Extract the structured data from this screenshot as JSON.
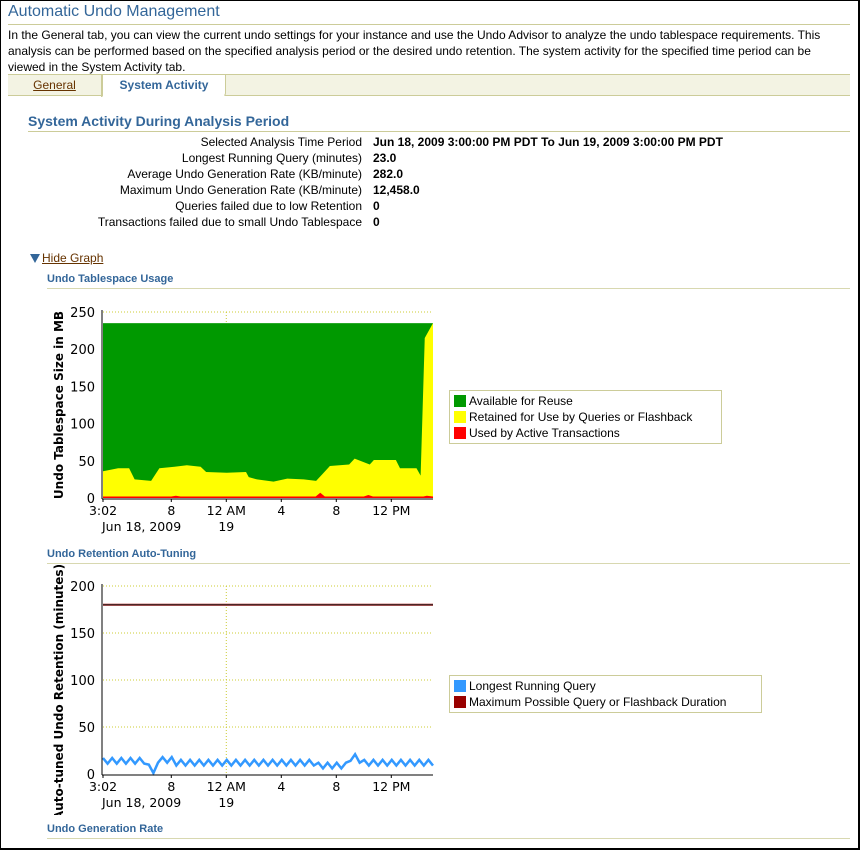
{
  "header": {
    "title": "Automatic Undo Management",
    "intro": "In the General tab, you can view the current undo settings for your instance and use the Undo Advisor to analyze the undo tablespace requirements. This analysis can be performed based on the specified analysis period or the desired undo retention. The system activity for the specified time period can be viewed in the System Activity tab."
  },
  "tabs": [
    {
      "label": "General",
      "active": false
    },
    {
      "label": "System Activity",
      "active": true
    }
  ],
  "section": {
    "title": "System Activity During Analysis Period",
    "rows": [
      {
        "label": "Selected Analysis Time Period",
        "value": "Jun 18, 2009 3:00:00 PM PDT To Jun 19, 2009 3:00:00 PM PDT"
      },
      {
        "label": "Longest Running Query (minutes)",
        "value": "23.0"
      },
      {
        "label": "Average Undo Generation Rate (KB/minute)",
        "value": "282.0"
      },
      {
        "label": "Maximum Undo Generation Rate (KB/minute)",
        "value": "12,458.0"
      },
      {
        "label": "Queries failed due to low Retention",
        "value": "0"
      },
      {
        "label": "Transactions failed due to small Undo Tablespace",
        "value": "0"
      }
    ]
  },
  "graph_toggle": {
    "label": "Hide Graph",
    "icon": "triangle-down-icon"
  },
  "subsections": {
    "usage": "Undo Tablespace Usage",
    "retention": "Undo Retention Auto-Tuning",
    "generation": "Undo Generation Rate"
  },
  "chart_data": [
    {
      "type": "area",
      "stacked": true,
      "title": "Undo Tablespace Usage",
      "ylabel": "Undo Tablespace Size in MB",
      "ylim": [
        0,
        250
      ],
      "yticks": [
        0,
        50,
        100,
        150,
        200,
        250
      ],
      "xlim": [
        "2009-06-18 15:02",
        "2009-06-19 15:02"
      ],
      "xticks": [
        {
          "label": "3:02",
          "sub": "Jun 18, 2009",
          "t": "2009-06-18 15:02"
        },
        {
          "label": "8",
          "t": "2009-06-18 20:00"
        },
        {
          "label": "12 AM",
          "sub": "19",
          "t": "2009-06-19 00:00"
        },
        {
          "label": "4",
          "t": "2009-06-19 04:00"
        },
        {
          "label": "8",
          "t": "2009-06-19 08:00"
        },
        {
          "label": "12 PM",
          "t": "2009-06-19 12:00"
        }
      ],
      "grid": {
        "horizontal": "dotted",
        "vertical_at": "12 AM"
      },
      "legend_position": "right",
      "series": [
        {
          "name": "Available for Reuse",
          "color": "#009900",
          "total_size": 235
        },
        {
          "name": "Retained for Use by Queries or Flashback",
          "color": "#ffff00",
          "points": [
            [
              "2009-06-18 15:02",
              36
            ],
            [
              "2009-06-18 16:08",
              40
            ],
            [
              "2009-06-18 16:56",
              40
            ],
            [
              "2009-06-18 17:20",
              25
            ],
            [
              "2009-06-18 18:32",
              23
            ],
            [
              "2009-06-18 19:08",
              40
            ],
            [
              "2009-06-18 20:14",
              42
            ],
            [
              "2009-06-18 21:08",
              44
            ],
            [
              "2009-06-18 22:08",
              42
            ],
            [
              "2009-06-18 22:32",
              35
            ],
            [
              "2009-06-19 00:02",
              34
            ],
            [
              "2009-06-19 01:26",
              35
            ],
            [
              "2009-06-19 01:38",
              28
            ],
            [
              "2009-06-19 02:14",
              25
            ],
            [
              "2009-06-19 03:26",
              22
            ],
            [
              "2009-06-19 04:26",
              26
            ],
            [
              "2009-06-19 05:38",
              25
            ],
            [
              "2009-06-19 06:32",
              23
            ],
            [
              "2009-06-19 07:02",
              33
            ],
            [
              "2009-06-19 07:32",
              43
            ],
            [
              "2009-06-19 08:56",
              45
            ],
            [
              "2009-06-19 09:20",
              53
            ],
            [
              "2009-06-19 10:26",
              45
            ],
            [
              "2009-06-19 10:44",
              51
            ],
            [
              "2009-06-19 12:20",
              51
            ],
            [
              "2009-06-19 12:38",
              40
            ],
            [
              "2009-06-19 13:50",
              40
            ],
            [
              "2009-06-19 14:08",
              30
            ],
            [
              "2009-06-19 14:26",
              215
            ],
            [
              "2009-06-19 15:02",
              235
            ]
          ]
        },
        {
          "name": "Used by Active Transactions",
          "color": "#ff0000",
          "points": [
            [
              "2009-06-18 15:02",
              2
            ],
            [
              "2009-06-18 20:00",
              2
            ],
            [
              "2009-06-18 20:20",
              3
            ],
            [
              "2009-06-18 20:40",
              2
            ],
            [
              "2009-06-19 06:30",
              2
            ],
            [
              "2009-06-19 06:50",
              7
            ],
            [
              "2009-06-19 07:10",
              2
            ],
            [
              "2009-06-19 10:00",
              2
            ],
            [
              "2009-06-19 10:20",
              4
            ],
            [
              "2009-06-19 10:40",
              2
            ],
            [
              "2009-06-19 14:20",
              2
            ],
            [
              "2009-06-19 14:35",
              3
            ],
            [
              "2009-06-19 15:02",
              2
            ]
          ]
        }
      ]
    },
    {
      "type": "line",
      "title": "Undo Retention Auto-Tuning",
      "ylabel": "Auto-tuned Undo Retention (minutes)",
      "ylim": [
        0,
        200
      ],
      "yticks": [
        0,
        50,
        100,
        150,
        200
      ],
      "xlim": [
        "2009-06-18 15:02",
        "2009-06-19 15:02"
      ],
      "xticks": [
        {
          "label": "3:02",
          "sub": "Jun 18, 2009",
          "t": "2009-06-18 15:02"
        },
        {
          "label": "8",
          "t": "2009-06-18 20:00"
        },
        {
          "label": "12 AM",
          "sub": "19",
          "t": "2009-06-19 00:00"
        },
        {
          "label": "4",
          "t": "2009-06-19 04:00"
        },
        {
          "label": "8",
          "t": "2009-06-19 08:00"
        },
        {
          "label": "12 PM",
          "t": "2009-06-19 12:00"
        }
      ],
      "grid": {
        "horizontal": "dotted",
        "vertical_at": "12 AM"
      },
      "legend_position": "right",
      "series": [
        {
          "name": "Longest Running Query",
          "color": "#3399ff",
          "start": "2009-06-18 15:02",
          "interval_minutes": 20,
          "values": [
            17,
            11,
            17,
            11,
            17,
            11,
            17,
            11,
            17,
            11,
            10,
            1,
            12,
            18,
            12,
            18,
            9,
            15,
            9,
            15,
            9,
            15,
            9,
            15,
            9,
            15,
            9,
            15,
            9,
            15,
            9,
            15,
            9,
            15,
            9,
            15,
            9,
            15,
            9,
            15,
            9,
            15,
            9,
            15,
            9,
            15,
            9,
            12,
            6,
            12,
            6,
            12,
            6,
            12,
            14,
            21,
            12,
            15,
            9,
            15,
            9,
            15,
            9,
            15,
            9,
            15,
            9,
            15,
            9,
            15,
            9,
            15,
            9
          ]
        },
        {
          "name": "Maximum Possible Query or Flashback Duration",
          "color": "#990000",
          "constant": 180
        }
      ]
    }
  ]
}
